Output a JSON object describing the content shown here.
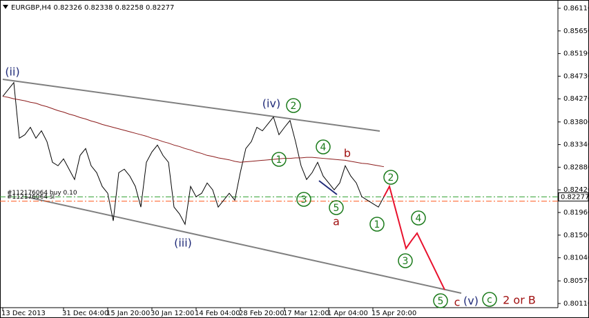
{
  "chart_data": {
    "type": "line",
    "title": "EURGBP,H4  0.82326 0.82338 0.82258 0.82277",
    "categories": [
      "13 Dec 2013",
      null,
      null,
      null,
      null,
      null,
      null,
      null,
      null,
      null,
      null,
      "31 Dec 04:00",
      null,
      null,
      null,
      null,
      null,
      null,
      null,
      "15 Jan 20:00",
      null,
      null,
      null,
      null,
      null,
      null,
      null,
      "30 Jan 12:00",
      null,
      null,
      null,
      null,
      null,
      null,
      null,
      "14 Feb 04:00",
      null,
      null,
      null,
      null,
      null,
      null,
      null,
      "28 Feb 20:00",
      null,
      null,
      null,
      null,
      null,
      null,
      null,
      "17 Mar 12:00",
      null,
      null,
      null,
      null,
      null,
      null,
      null,
      "1 Apr 04:00",
      null,
      null,
      null,
      null,
      null,
      null,
      null,
      "15 Apr 20:00",
      null,
      null,
      null,
      null,
      null,
      null,
      null,
      null,
      null,
      null,
      null,
      null,
      null
    ],
    "series": [
      {
        "name": "EURGBP",
        "color": "#000000",
        "values": [
          0.8432,
          0.8446,
          0.846,
          0.8347,
          0.8354,
          0.8369,
          0.8347,
          0.8362,
          0.834,
          0.8298,
          0.8291,
          0.8305,
          0.8284,
          0.8263,
          0.8312,
          0.8326,
          0.8291,
          0.8277,
          0.8249,
          0.8235,
          0.8179,
          0.8277,
          0.8284,
          0.827,
          0.8249,
          0.8207,
          0.8298,
          0.8319,
          0.8333,
          0.8312,
          0.8298,
          0.8207,
          0.8193,
          0.8172,
          0.8249,
          0.8228,
          0.8235,
          0.8256,
          0.8242,
          0.8207,
          0.8221,
          0.8235,
          0.8221,
          0.8277,
          0.8326,
          0.834,
          0.8369,
          0.8362,
          0.8376,
          0.839,
          0.8354,
          0.8369,
          0.8383,
          0.834,
          0.8291,
          0.8263,
          0.8277,
          0.8298,
          0.827,
          0.8256,
          0.8242,
          0.8256,
          0.8291,
          0.827,
          0.8256,
          0.8228,
          0.8221,
          0.8214,
          0.8207,
          0.8228,
          null,
          null,
          null,
          null,
          null,
          null,
          null,
          null,
          null,
          null,
          null
        ]
      },
      {
        "name": "MA",
        "color": "#8b1a1a",
        "values": [
          0.8432,
          0.843,
          0.8427,
          0.8425,
          0.8423,
          0.842,
          0.8418,
          0.8414,
          0.8411,
          0.8407,
          0.8403,
          0.84,
          0.8396,
          0.8393,
          0.8389,
          0.8386,
          0.8382,
          0.8379,
          0.8375,
          0.8372,
          0.8369,
          0.8366,
          0.8363,
          0.836,
          0.8357,
          0.8354,
          0.8351,
          0.8347,
          0.8344,
          0.834,
          0.8337,
          0.8333,
          0.833,
          0.8326,
          0.8323,
          0.8319,
          0.8316,
          0.8312,
          0.831,
          0.8307,
          0.8305,
          0.8303,
          0.83,
          0.8298,
          0.8299,
          0.83,
          0.8301,
          0.8302,
          0.8303,
          0.8304,
          0.8305,
          0.8306,
          0.8306,
          0.8307,
          0.8307,
          0.8308,
          0.8308,
          0.8307,
          0.8306,
          0.8305,
          0.8304,
          0.8303,
          0.8302,
          0.83,
          0.8298,
          0.8296,
          0.8295,
          0.8293,
          0.8291,
          0.8289,
          null,
          null,
          null,
          null,
          null,
          null,
          null,
          null,
          null,
          null,
          null
        ]
      },
      {
        "name": "Forecast",
        "color": "#e8112d",
        "values": [
          null,
          null,
          null,
          null,
          null,
          null,
          null,
          null,
          null,
          null,
          null,
          null,
          null,
          null,
          null,
          null,
          null,
          null,
          null,
          null,
          null,
          null,
          null,
          null,
          null,
          null,
          null,
          null,
          null,
          null,
          null,
          null,
          null,
          null,
          null,
          null,
          null,
          null,
          null,
          null,
          null,
          null,
          null,
          null,
          null,
          null,
          null,
          null,
          null,
          null,
          null,
          null,
          null,
          null,
          null,
          null,
          null,
          null,
          null,
          null,
          null,
          null,
          null,
          null,
          null,
          null,
          null,
          null,
          null,
          0.8228,
          0.8249,
          0.8207,
          0.8165,
          0.8123,
          0.8139,
          0.8154,
          0.8131,
          0.8108,
          0.8085,
          0.8062,
          0.8039
        ]
      }
    ],
    "ylim": [
      0.80026,
      0.8625
    ],
    "yticks": [
      {
        "value": 0.8611,
        "label": "0.86110"
      },
      {
        "value": 0.8565,
        "label": "0.85650"
      },
      {
        "value": 0.8519,
        "label": "0.85190"
      },
      {
        "value": 0.8473,
        "label": "0.84730"
      },
      {
        "value": 0.8427,
        "label": "0.84270"
      },
      {
        "value": 0.838,
        "label": "0.83800"
      },
      {
        "value": 0.8334,
        "label": "0.83340"
      },
      {
        "value": 0.8288,
        "label": "0.82880"
      },
      {
        "value": 0.8242,
        "label": "0.82420"
      },
      {
        "value": 0.8196,
        "label": "0.81960"
      },
      {
        "value": 0.815,
        "label": "0.81500"
      },
      {
        "value": 0.8104,
        "label": "0.81040"
      },
      {
        "value": 0.8057,
        "label": "0.80570"
      },
      {
        "value": 0.8011,
        "label": "0.80110"
      }
    ],
    "levels": [
      {
        "label": "#112176064 buy 0.10",
        "value": 0.82277,
        "color": "#2e9e2e"
      },
      {
        "label": "#112176064 sl",
        "value": 0.8219,
        "color": "#ff5a1f"
      }
    ],
    "annotations": [
      {
        "text": "(ii)",
        "circled": false,
        "color": "#1f2a78"
      },
      {
        "text": "(iv)",
        "circled": false,
        "color": "#1f2a78"
      },
      {
        "text": "2",
        "circled": true,
        "color": "#1a7a1a"
      },
      {
        "text": "1",
        "circled": true,
        "color": "#1a7a1a"
      },
      {
        "text": "3",
        "circled": true,
        "color": "#1a7a1a"
      },
      {
        "text": "4",
        "circled": true,
        "color": "#1a7a1a"
      },
      {
        "text": "b",
        "circled": false,
        "color": "#a01010"
      },
      {
        "text": "5",
        "circled": true,
        "color": "#1a7a1a"
      },
      {
        "text": "a",
        "circled": false,
        "color": "#a01010"
      },
      {
        "text": "(iii)",
        "circled": false,
        "color": "#1f2a78"
      },
      {
        "text": "2",
        "circled": true,
        "color": "#1a7a1a"
      },
      {
        "text": "1",
        "circled": true,
        "color": "#1a7a1a"
      },
      {
        "text": "4",
        "circled": true,
        "color": "#1a7a1a"
      },
      {
        "text": "3",
        "circled": true,
        "color": "#1a7a1a"
      },
      {
        "text": "5",
        "circled": true,
        "color": "#1a7a1a"
      },
      {
        "text": "c",
        "circled": false,
        "color": "#a01010"
      },
      {
        "text": "(v)",
        "circled": false,
        "color": "#1f2a78"
      },
      {
        "text": "c",
        "circled": true,
        "color": "#1a7a1a"
      },
      {
        "text": "2 or B",
        "circled": false,
        "color": "#a01010"
      }
    ]
  }
}
